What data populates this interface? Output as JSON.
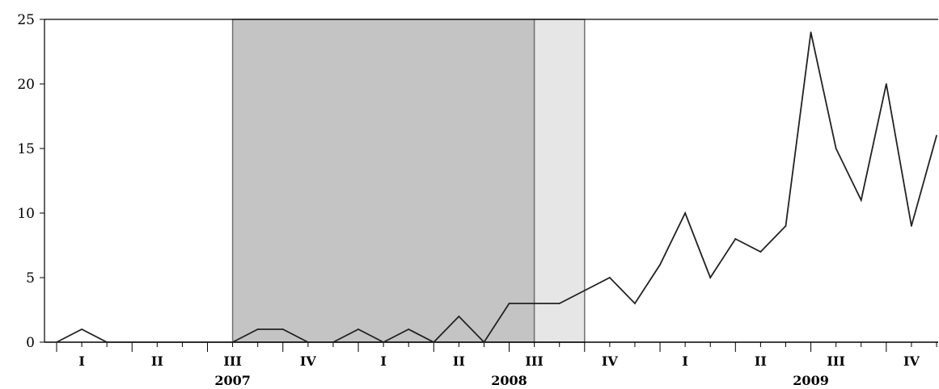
{
  "chart_data": {
    "type": "line",
    "title": "",
    "xlabel": "",
    "ylabel": "",
    "ylim": [
      0,
      25
    ],
    "yticks": [
      0,
      5,
      10,
      15,
      20,
      25
    ],
    "grid": false,
    "x": [
      "2007-01",
      "2007-02",
      "2007-03",
      "2007-04",
      "2007-05",
      "2007-06",
      "2007-07",
      "2007-08",
      "2007-09",
      "2007-10",
      "2007-11",
      "2007-12",
      "2008-01",
      "2008-02",
      "2008-03",
      "2008-04",
      "2008-05",
      "2008-06",
      "2008-07",
      "2008-08",
      "2008-09",
      "2008-10",
      "2008-11",
      "2008-12",
      "2009-01",
      "2009-02",
      "2009-03",
      "2009-04",
      "2009-05",
      "2009-06",
      "2009-07",
      "2009-08",
      "2009-09",
      "2009-10",
      "2009-11",
      "2009-12"
    ],
    "series": [
      {
        "values": [
          0,
          1,
          0,
          0,
          0,
          0,
          0,
          0,
          1,
          1,
          0,
          0,
          1,
          0,
          1,
          0,
          2,
          0,
          3,
          3,
          3,
          4,
          5,
          3,
          6,
          10,
          5,
          8,
          7,
          9,
          24,
          15,
          11,
          20,
          9,
          16
        ]
      }
    ],
    "shaded_regions": [
      {
        "start": "2007-08",
        "end": "2008-08",
        "color": "#c4c4c4"
      },
      {
        "start": "2008-08",
        "end": "2008-10",
        "color": "#e6e6e6"
      }
    ],
    "quarter_labels": [
      {
        "label": "I",
        "year": "2007",
        "center_month": "2007-02"
      },
      {
        "label": "II",
        "year": "2007",
        "center_month": "2007-05"
      },
      {
        "label": "III",
        "year": "2007",
        "center_month": "2007-08"
      },
      {
        "label": "IV",
        "year": "2007",
        "center_month": "2007-11"
      },
      {
        "label": "I",
        "year": "2008",
        "center_month": "2008-02"
      },
      {
        "label": "II",
        "year": "2008",
        "center_month": "2008-05"
      },
      {
        "label": "III",
        "year": "2008",
        "center_month": "2008-08"
      },
      {
        "label": "IV",
        "year": "2008",
        "center_month": "2008-11"
      },
      {
        "label": "I",
        "year": "2009",
        "center_month": "2009-02"
      },
      {
        "label": "II",
        "year": "2009",
        "center_month": "2009-05"
      },
      {
        "label": "III",
        "year": "2009",
        "center_month": "2009-08"
      },
      {
        "label": "IV",
        "year": "2009",
        "center_month": "2009-11"
      }
    ],
    "year_labels": [
      {
        "label": "2007",
        "center_month": "2007-08"
      },
      {
        "label": "2008",
        "center_month": "2008-07"
      },
      {
        "label": "2009",
        "center_month": "2009-07"
      }
    ],
    "colors": {
      "line": "#222222",
      "axis": "#000000"
    }
  }
}
